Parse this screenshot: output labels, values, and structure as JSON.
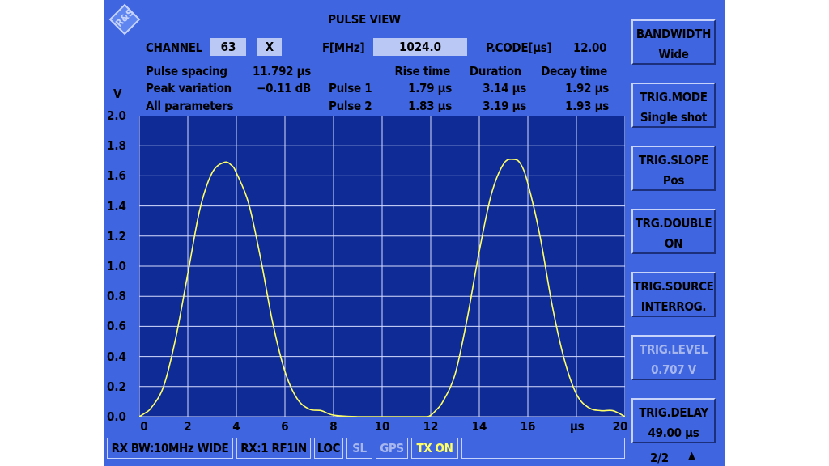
{
  "header": {
    "title": "PULSE VIEW",
    "logo_text": "R&S"
  },
  "channel": {
    "label": "CHANNEL",
    "number": "63",
    "mode": "X"
  },
  "frequency": {
    "label": "F[MHz]",
    "value": "1024.0"
  },
  "pcode": {
    "label": "P.CODE[µs]",
    "value": "12.00"
  },
  "left_params": {
    "pulse_spacing_label": "Pulse spacing",
    "pulse_spacing_value": "11.792 µs",
    "peak_variation_label": "Peak variation",
    "peak_variation_value": "−0.11 dB",
    "all_parameters_label": "All parameters"
  },
  "pulse_table": {
    "headers": [
      "Rise time",
      "Duration",
      "Decay time"
    ],
    "rows": [
      {
        "label": "Pulse 1",
        "rise": "1.79 µs",
        "duration": "3.14 µs",
        "decay": "1.92 µs"
      },
      {
        "label": "Pulse 2",
        "rise": "1.83 µs",
        "duration": "3.19 µs",
        "decay": "1.93 µs"
      }
    ]
  },
  "softkeys": [
    {
      "title": "BANDWIDTH",
      "value": "Wide",
      "enabled": true
    },
    {
      "title": "TRIG.MODE",
      "value": "Single shot",
      "enabled": true
    },
    {
      "title": "TRIG.SLOPE",
      "value": "Pos",
      "enabled": true
    },
    {
      "title": "TRG.DOUBLE",
      "value": "ON",
      "enabled": true
    },
    {
      "title": "TRIG.SOURCE",
      "value": "INTERROG.",
      "enabled": true
    },
    {
      "title": "TRIG.LEVEL",
      "value": "0.707  V",
      "enabled": false
    },
    {
      "title": "TRIG.DELAY",
      "value": "49.00 µs",
      "enabled": true
    }
  ],
  "page_indicator": "2/2",
  "page_arrow": "▲",
  "status_bar": {
    "rx_bw": "RX BW:10MHz WIDE",
    "rx_in": "RX:1 RF1IN",
    "loc": "LOC",
    "sl": "SL",
    "gps": "GPS",
    "tx": "TX ON",
    "tx_color": "#ffff66",
    "disabled_color": "#a7b7ee"
  },
  "colors": {
    "screen_bg": "#3f66e0",
    "plot_bg": "#0f2c96",
    "grid": "#d8dcff",
    "trace": "#ffff66"
  },
  "chart_data": {
    "type": "line",
    "ylabel": "V",
    "xlabel": "µs",
    "xlim": [
      0,
      20
    ],
    "ylim": [
      0,
      2.0
    ],
    "x_ticks": [
      0,
      2,
      4,
      6,
      8,
      10,
      12,
      14,
      16,
      20
    ],
    "y_ticks": [
      "0.0",
      "0.2",
      "0.4",
      "0.6",
      "0.8",
      "1.0",
      "1.2",
      "1.4",
      "1.6",
      "1.8",
      "2.0"
    ],
    "grid": true,
    "series": [
      {
        "x": [
          0,
          0.2,
          0.5,
          1.0,
          1.5,
          2.0,
          2.5,
          3.0,
          3.5,
          3.8,
          4.0,
          4.5,
          5.0,
          5.5,
          6.0,
          6.5,
          7.0,
          7.5,
          8.0,
          9.0,
          10.0,
          11.0,
          11.8,
          12.0,
          12.2,
          12.5,
          13.0,
          13.5,
          14.0,
          14.5,
          15.0,
          15.4,
          15.7,
          16.0,
          16.5,
          17.0,
          17.5,
          18.0,
          18.5,
          19.0,
          19.5,
          20.0
        ],
        "y": [
          0,
          0.02,
          0.06,
          0.2,
          0.52,
          0.95,
          1.38,
          1.62,
          1.69,
          1.67,
          1.62,
          1.42,
          1.05,
          0.62,
          0.3,
          0.12,
          0.05,
          0.04,
          0.01,
          0.0,
          0.0,
          0.0,
          0.0,
          0.01,
          0.04,
          0.1,
          0.28,
          0.65,
          1.1,
          1.48,
          1.68,
          1.71,
          1.68,
          1.55,
          1.2,
          0.74,
          0.38,
          0.15,
          0.06,
          0.04,
          0.04,
          0.0
        ]
      }
    ]
  }
}
